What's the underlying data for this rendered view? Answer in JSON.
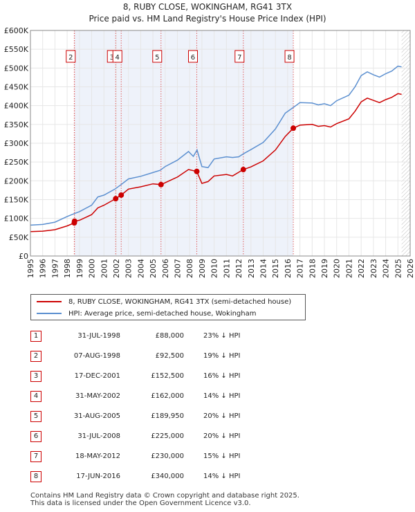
{
  "header": {
    "title": "8, RUBY CLOSE, WOKINGHAM, RG41 3TX",
    "subtitle": "Price paid vs. HM Land Registry's House Price Index (HPI)"
  },
  "legend": {
    "items": [
      {
        "label": "8, RUBY CLOSE, WOKINGHAM, RG41 3TX (semi-detached house)",
        "color": "#cc0000"
      },
      {
        "label": "HPI: Average price, semi-detached house, Wokingham",
        "color": "#5b8fd0"
      }
    ]
  },
  "sales": [
    {
      "num": "1",
      "date": "31-JUL-1998",
      "price": "£88,000",
      "hpi": "23% ↓ HPI"
    },
    {
      "num": "2",
      "date": "07-AUG-1998",
      "price": "£92,500",
      "hpi": "19% ↓ HPI"
    },
    {
      "num": "3",
      "date": "17-DEC-2001",
      "price": "£152,500",
      "hpi": "16% ↓ HPI"
    },
    {
      "num": "4",
      "date": "31-MAY-2002",
      "price": "£162,000",
      "hpi": "14% ↓ HPI"
    },
    {
      "num": "5",
      "date": "31-AUG-2005",
      "price": "£189,950",
      "hpi": "20% ↓ HPI"
    },
    {
      "num": "6",
      "date": "31-JUL-2008",
      "price": "£225,000",
      "hpi": "20% ↓ HPI"
    },
    {
      "num": "7",
      "date": "18-MAY-2012",
      "price": "£230,000",
      "hpi": "15% ↓ HPI"
    },
    {
      "num": "8",
      "date": "17-JUN-2016",
      "price": "£340,000",
      "hpi": "14% ↓ HPI"
    }
  ],
  "footer": {
    "line1": "Contains HM Land Registry data © Crown copyright and database right 2025.",
    "line2": "This data is licensed under the Open Government Licence v3.0."
  },
  "chart_data": {
    "type": "line",
    "title": "8, RUBY CLOSE, WOKINGHAM, RG41 3TX",
    "subtitle": "Price paid vs. HM Land Registry's House Price Index (HPI)",
    "xlabel": "",
    "ylabel": "",
    "xlim": [
      1995,
      2026
    ],
    "ylim": [
      0,
      600000
    ],
    "grid": true,
    "legend_position": "bottom",
    "y_ticks": [
      {
        "value": 0,
        "label": "£0"
      },
      {
        "value": 50000,
        "label": "£50K"
      },
      {
        "value": 100000,
        "label": "£100K"
      },
      {
        "value": 150000,
        "label": "£150K"
      },
      {
        "value": 200000,
        "label": "£200K"
      },
      {
        "value": 250000,
        "label": "£250K"
      },
      {
        "value": 300000,
        "label": "£300K"
      },
      {
        "value": 350000,
        "label": "£350K"
      },
      {
        "value": 400000,
        "label": "£400K"
      },
      {
        "value": 450000,
        "label": "£450K"
      },
      {
        "value": 500000,
        "label": "£500K"
      },
      {
        "value": 550000,
        "label": "£550K"
      },
      {
        "value": 600000,
        "label": "£600K"
      }
    ],
    "x_ticks": [
      "1995",
      "1996",
      "1997",
      "1998",
      "1999",
      "2000",
      "2001",
      "2002",
      "2003",
      "2004",
      "2005",
      "2006",
      "2007",
      "2008",
      "2009",
      "2010",
      "2011",
      "2012",
      "2013",
      "2014",
      "2015",
      "2016",
      "2017",
      "2018",
      "2019",
      "2020",
      "2021",
      "2022",
      "2023",
      "2024",
      "2025",
      "2026"
    ],
    "series": [
      {
        "name": "HPI: Average price, semi-detached house, Wokingham",
        "color": "#5b8fd0",
        "points": [
          [
            1995,
            82000
          ],
          [
            1996,
            84000
          ],
          [
            1997,
            90000
          ],
          [
            1998,
            105000
          ],
          [
            1998.6,
            113000
          ],
          [
            1999,
            118000
          ],
          [
            2000,
            135000
          ],
          [
            2000.5,
            157000
          ],
          [
            2001,
            162000
          ],
          [
            2001.9,
            178000
          ],
          [
            2002.4,
            190000
          ],
          [
            2003,
            205000
          ],
          [
            2004,
            212000
          ],
          [
            2005,
            222000
          ],
          [
            2005.6,
            228000
          ],
          [
            2006,
            238000
          ],
          [
            2007,
            255000
          ],
          [
            2007.9,
            278000
          ],
          [
            2008.3,
            265000
          ],
          [
            2008.6,
            282000
          ],
          [
            2009,
            238000
          ],
          [
            2009.5,
            235000
          ],
          [
            2010,
            258000
          ],
          [
            2011,
            264000
          ],
          [
            2011.5,
            262000
          ],
          [
            2012,
            264000
          ],
          [
            2012.4,
            272000
          ],
          [
            2013,
            283000
          ],
          [
            2014,
            302000
          ],
          [
            2015,
            338000
          ],
          [
            2015.8,
            380000
          ],
          [
            2016.5,
            396000
          ],
          [
            2017,
            408000
          ],
          [
            2018,
            407000
          ],
          [
            2018.5,
            402000
          ],
          [
            2019,
            405000
          ],
          [
            2019.5,
            400000
          ],
          [
            2020,
            413000
          ],
          [
            2021,
            428000
          ],
          [
            2021.5,
            450000
          ],
          [
            2022,
            480000
          ],
          [
            2022.5,
            490000
          ],
          [
            2023,
            482000
          ],
          [
            2023.5,
            476000
          ],
          [
            2024,
            485000
          ],
          [
            2024.5,
            492000
          ],
          [
            2025,
            505000
          ],
          [
            2025.3,
            503000
          ]
        ]
      },
      {
        "name": "8, RUBY CLOSE, WOKINGHAM, RG41 3TX (semi-detached house)",
        "color": "#cc0000",
        "points": [
          [
            1995,
            65000
          ],
          [
            1996,
            66000
          ],
          [
            1997,
            70000
          ],
          [
            1998,
            80000
          ],
          [
            1998.58,
            88000
          ],
          [
            1998.6,
            92500
          ],
          [
            1999,
            95000
          ],
          [
            2000,
            110000
          ],
          [
            2000.5,
            128000
          ],
          [
            2001,
            135000
          ],
          [
            2001.96,
            152500
          ],
          [
            2002.41,
            162000
          ],
          [
            2003,
            178000
          ],
          [
            2004,
            184000
          ],
          [
            2005,
            192000
          ],
          [
            2005.66,
            189950
          ],
          [
            2006,
            195000
          ],
          [
            2007,
            210000
          ],
          [
            2007.9,
            230000
          ],
          [
            2008.58,
            225000
          ],
          [
            2009,
            193000
          ],
          [
            2009.5,
            198000
          ],
          [
            2010,
            213000
          ],
          [
            2011,
            217000
          ],
          [
            2011.5,
            213000
          ],
          [
            2012.38,
            230000
          ],
          [
            2013,
            237000
          ],
          [
            2014,
            253000
          ],
          [
            2015,
            282000
          ],
          [
            2015.8,
            318000
          ],
          [
            2016.46,
            340000
          ],
          [
            2017,
            348000
          ],
          [
            2018,
            350000
          ],
          [
            2018.5,
            345000
          ],
          [
            2019,
            347000
          ],
          [
            2019.5,
            343000
          ],
          [
            2020,
            352000
          ],
          [
            2021,
            365000
          ],
          [
            2021.5,
            385000
          ],
          [
            2022,
            410000
          ],
          [
            2022.5,
            420000
          ],
          [
            2023,
            414000
          ],
          [
            2023.5,
            408000
          ],
          [
            2024,
            416000
          ],
          [
            2024.5,
            422000
          ],
          [
            2025,
            432000
          ],
          [
            2025.3,
            430000
          ]
        ]
      }
    ],
    "sale_markers": [
      {
        "num": "1",
        "year": 1998.58,
        "price": 88000
      },
      {
        "num": "2",
        "year": 1998.6,
        "price": 92500
      },
      {
        "num": "3",
        "year": 2001.96,
        "price": 152500
      },
      {
        "num": "4",
        "year": 2002.41,
        "price": 162000
      },
      {
        "num": "5",
        "year": 2005.66,
        "price": 189950
      },
      {
        "num": "6",
        "year": 2008.58,
        "price": 225000
      },
      {
        "num": "7",
        "year": 2012.38,
        "price": 230000
      },
      {
        "num": "8",
        "year": 2016.46,
        "price": 340000
      }
    ],
    "marker_labels_shown": [
      "2",
      "3",
      "4",
      "5",
      "6",
      "7",
      "8"
    ],
    "forecast_start": 2025.3,
    "colors": {
      "hpi": "#5b8fd0",
      "property": "#cc0000",
      "shade": "#dde6f5",
      "grid": "#e6e6e6"
    }
  }
}
